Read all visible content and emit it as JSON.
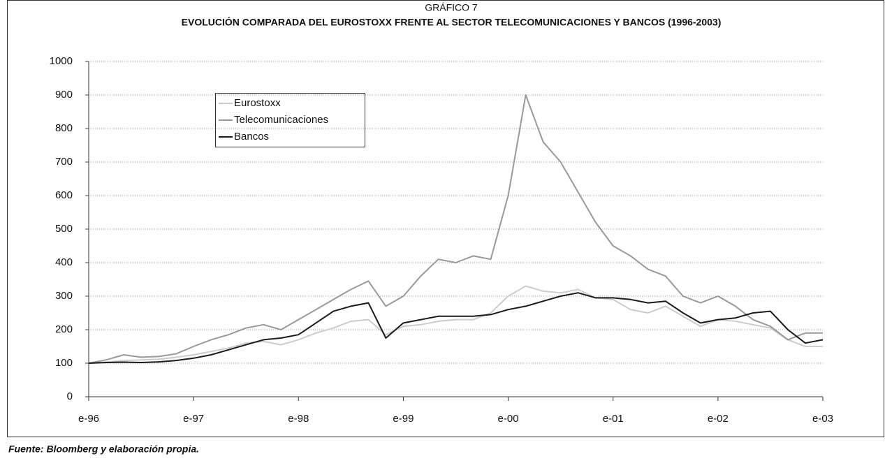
{
  "chart_data": {
    "type": "line",
    "title": "GRÁFICO 7",
    "subtitle": "EVOLUCIÓN COMPARADA DEL EUROSTOXX FRENTE AL SECTOR TELECOMUNICACIONES Y BANCOS (1996-2003)",
    "source": "Fuente: Bloomberg y elaboración propia.",
    "x": [
      1996,
      1996.1667,
      1996.3333,
      1996.5,
      1996.6667,
      1996.8333,
      1997,
      1997.1667,
      1997.3333,
      1997.5,
      1997.6667,
      1997.8333,
      1998,
      1998.1667,
      1998.3333,
      1998.5,
      1998.6667,
      1998.8333,
      1999,
      1999.1667,
      1999.3333,
      1999.5,
      1999.6667,
      1999.8333,
      2000,
      2000.1667,
      2000.3333,
      2000.5,
      2000.6667,
      2000.8333,
      2001,
      2001.1667,
      2001.3333,
      2001.5,
      2001.6667,
      2001.8333,
      2002,
      2002.1667,
      2002.3333,
      2002.5,
      2002.6667,
      2002.8333,
      2003
    ],
    "series": [
      {
        "name": "Eurostoxx",
        "color": "#cccccc",
        "values": [
          100,
          103,
          108,
          110,
          112,
          118,
          125,
          135,
          145,
          160,
          165,
          155,
          170,
          190,
          205,
          225,
          230,
          185,
          210,
          215,
          225,
          230,
          230,
          250,
          300,
          330,
          315,
          310,
          320,
          295,
          290,
          260,
          250,
          270,
          240,
          210,
          230,
          225,
          215,
          205,
          170,
          150,
          150
        ]
      },
      {
        "name": "Telecomunicaciones",
        "color": "#999999",
        "values": [
          100,
          110,
          125,
          118,
          120,
          128,
          150,
          170,
          185,
          205,
          215,
          200,
          230,
          260,
          290,
          320,
          345,
          270,
          300,
          360,
          410,
          400,
          420,
          410,
          600,
          900,
          760,
          700,
          610,
          520,
          450,
          420,
          380,
          360,
          300,
          280,
          300,
          270,
          230,
          210,
          170,
          190,
          190
        ]
      },
      {
        "name": "Bancos",
        "color": "#1a1a1a",
        "values": [
          100,
          102,
          103,
          102,
          104,
          108,
          115,
          125,
          140,
          155,
          170,
          175,
          185,
          220,
          255,
          270,
          280,
          175,
          220,
          230,
          240,
          240,
          240,
          245,
          260,
          270,
          285,
          300,
          310,
          295,
          295,
          290,
          280,
          285,
          250,
          220,
          230,
          235,
          250,
          255,
          200,
          160,
          170
        ]
      }
    ],
    "xlim": [
      1996,
      2003
    ],
    "xticks": [
      {
        "value": 1996,
        "label": "e-96"
      },
      {
        "value": 1997,
        "label": "e-97"
      },
      {
        "value": 1998,
        "label": "e-98"
      },
      {
        "value": 1999,
        "label": "e-99"
      },
      {
        "value": 2000,
        "label": "e-00"
      },
      {
        "value": 2001,
        "label": "e-01"
      },
      {
        "value": 2002,
        "label": "e-02"
      },
      {
        "value": 2003,
        "label": "e-03"
      }
    ],
    "ylim": [
      0,
      1000
    ],
    "yticks": [
      0,
      100,
      200,
      300,
      400,
      500,
      600,
      700,
      800,
      900,
      1000
    ],
    "grid": true
  }
}
